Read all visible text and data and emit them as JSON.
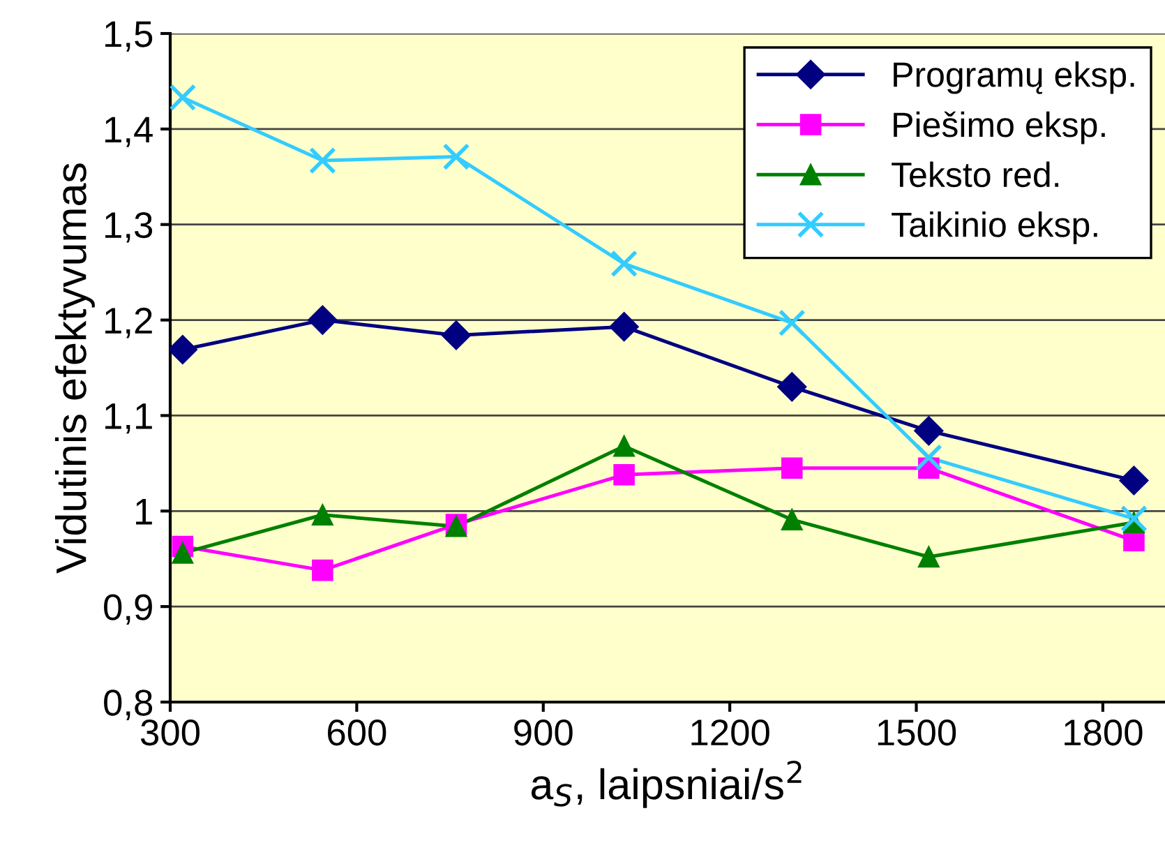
{
  "chart_data": {
    "type": "line",
    "xlabel": "a$_{S}$, laipsniai/s$^{2}$",
    "ylabel": "Vidutinis efektyvumas",
    "x": [
      320,
      545,
      760,
      1030,
      1300,
      1520,
      1850
    ],
    "series": [
      {
        "name": "Programų eksp.",
        "color": "#000080",
        "marker": "diamond",
        "values": [
          1.169,
          1.2,
          1.184,
          1.193,
          1.13,
          1.084,
          1.032
        ]
      },
      {
        "name": "Piešimo eksp.",
        "color": "#ff00ff",
        "marker": "square",
        "values": [
          0.963,
          0.938,
          0.986,
          1.038,
          1.045,
          1.045,
          0.969
        ]
      },
      {
        "name": "Teksto red.",
        "color": "#008000",
        "marker": "triangle",
        "values": [
          0.956,
          0.996,
          0.984,
          1.068,
          0.991,
          0.952,
          0.988
        ]
      },
      {
        "name": "Taikinio eksp.",
        "color": "#33ccff",
        "marker": "cross",
        "values": [
          1.433,
          1.367,
          1.371,
          1.259,
          1.197,
          1.056,
          0.992
        ]
      }
    ],
    "xlim": [
      300,
      1900
    ],
    "xticks": [
      300,
      600,
      900,
      1200,
      1500,
      1800
    ],
    "ylim": [
      0.8,
      1.5
    ],
    "yticks": [
      {
        "value": 0.8,
        "label": "0,8"
      },
      {
        "value": 0.9,
        "label": "0,9"
      },
      {
        "value": 1,
        "label": "1"
      },
      {
        "value": 1.1,
        "label": "1,1"
      },
      {
        "value": 1.2,
        "label": "1,2"
      },
      {
        "value": 1.3,
        "label": "1,3"
      },
      {
        "value": 1.4,
        "label": "1,4"
      },
      {
        "value": 1.5,
        "label": "1,5"
      }
    ],
    "grid": "y",
    "legend": "top right",
    "line_style": "solid"
  }
}
